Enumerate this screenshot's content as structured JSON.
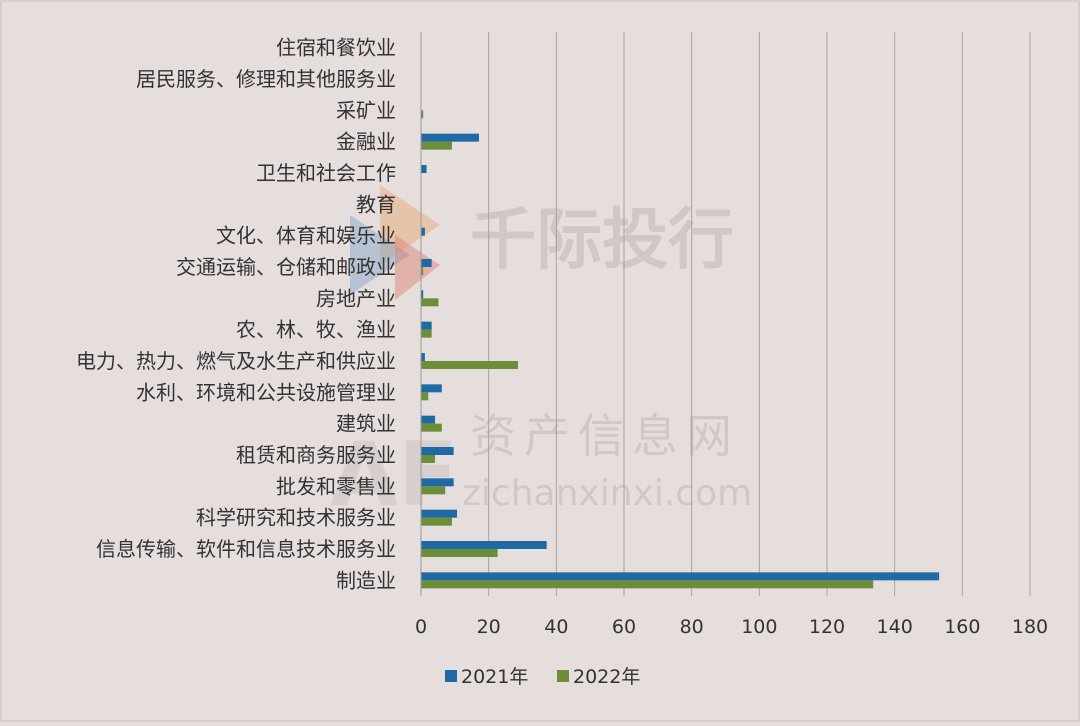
{
  "watermark": {
    "brand": "千际投行",
    "site": "资产信息网",
    "domain": "zichanxinxi.com",
    "logo": "AF"
  },
  "chart_data": {
    "type": "bar",
    "orientation": "horizontal",
    "categories": [
      "住宿和餐饮业",
      "居民服务、修理和其他服务业",
      "采矿业",
      "金融业",
      "卫生和社会工作",
      "教育",
      "文化、体育和娱乐业",
      "交通运输、仓储和邮政业",
      "房地产业",
      "农、林、牧、渔业",
      "电力、热力、燃气及水生产和供应业",
      "水利、环境和公共设施管理业",
      "建筑业",
      "租赁和商务服务业",
      "批发和零售业",
      "科学研究和技术服务业",
      "信息传输、软件和信息技术服务业",
      "制造业"
    ],
    "series": [
      {
        "name": "2021年",
        "color": "#1f6aa5",
        "values": [
          0,
          0,
          0,
          17,
          1.5,
          0,
          1,
          3,
          0.5,
          3,
          1,
          6,
          4,
          9.5,
          9.5,
          10.5,
          37,
          153
        ]
      },
      {
        "name": "2022年",
        "color": "#6b8e3a",
        "values": [
          0,
          0,
          0.5,
          9,
          0,
          0,
          0,
          0.5,
          5,
          3,
          28.5,
          2,
          6,
          4,
          7,
          9,
          22.5,
          133.5
        ]
      }
    ],
    "xlim": [
      0,
      180
    ],
    "xticks": [
      "0",
      "20",
      "40",
      "60",
      "80",
      "100",
      "120",
      "140",
      "160",
      "180"
    ],
    "xtick_values": [
      0,
      20,
      40,
      60,
      80,
      100,
      120,
      140,
      160,
      180
    ],
    "grid": "vertical",
    "legend_position": "bottom"
  }
}
